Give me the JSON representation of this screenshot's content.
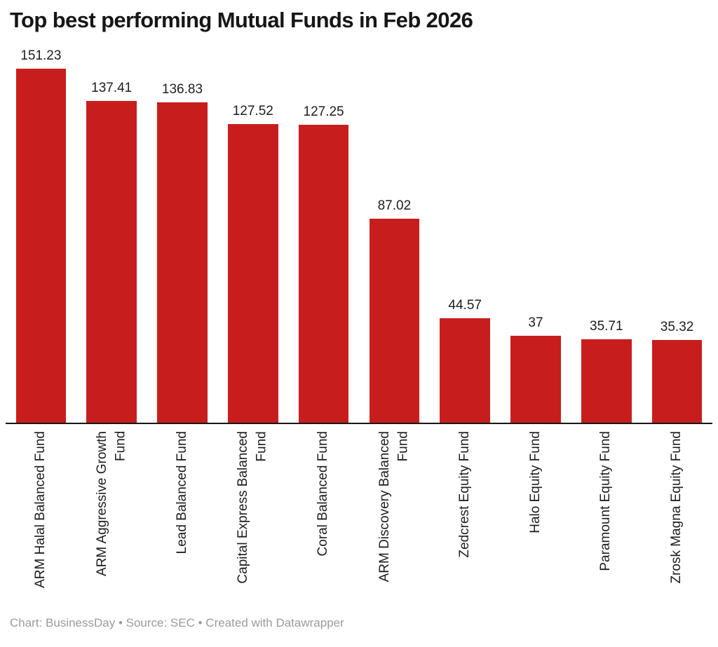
{
  "page": {
    "footer": "Chart: BusinessDay • Source: SEC • Created with Datawrapper"
  },
  "colors": {
    "bar": "#c71e1d",
    "title": "#161616",
    "text": "#1d1d1d",
    "footer_text": "#9b9b9b",
    "axis": "#161616",
    "background": "#ffffff"
  },
  "chart_data": {
    "type": "bar",
    "title": "Top best performing Mutual Funds in Feb 2026",
    "xlabel": "",
    "ylabel": "",
    "ylim": [
      0,
      155
    ],
    "grid": false,
    "legend": false,
    "orientation": "vertical",
    "bar_color": "#c71e1d",
    "value_label_position": "above-bar",
    "category_label_rotation": -90,
    "categories": [
      "ARM Halal Balanced Fund",
      "ARM Aggressive Growth Fund",
      "Lead Balanced Fund",
      "Capital Express Balanced Fund",
      "Coral Balanced Fund",
      "ARM Discovery Balanced Fund",
      "Zedcrest Equity Fund",
      "Halo Equity Fund",
      "Paramount Equity Fund",
      "Zrosk Magna Equity Fund"
    ],
    "category_lines": [
      [
        "ARM Halal Balanced Fund"
      ],
      [
        "ARM Aggressive Growth",
        "Fund"
      ],
      [
        "Lead Balanced Fund"
      ],
      [
        "Capital Express Balanced",
        "Fund"
      ],
      [
        "Coral Balanced Fund"
      ],
      [
        "ARM Discovery Balanced",
        "Fund"
      ],
      [
        "Zedcrest Equity Fund"
      ],
      [
        "Halo Equity Fund"
      ],
      [
        "Paramount Equity Fund"
      ],
      [
        "Zrosk Magna Equity Fund"
      ]
    ],
    "values": [
      151.23,
      137.41,
      136.83,
      127.52,
      127.25,
      87.02,
      44.57,
      37,
      35.71,
      35.32
    ],
    "value_labels": [
      "151.23",
      "137.41",
      "136.83",
      "127.52",
      "127.25",
      "87.02",
      "44.57",
      "37",
      "35.71",
      "35.32"
    ]
  }
}
